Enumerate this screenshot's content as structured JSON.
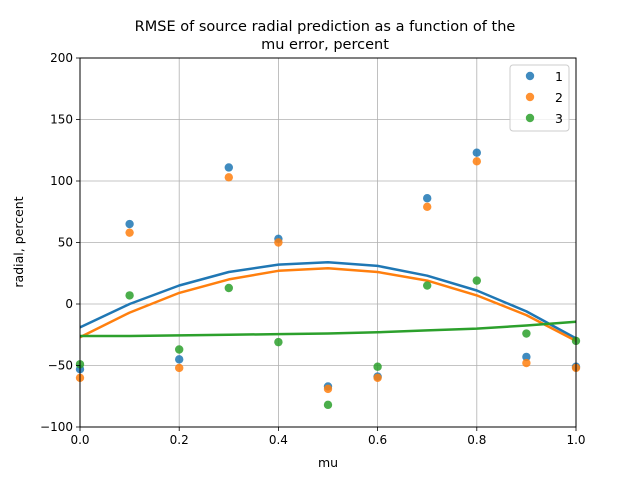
{
  "chart_data": {
    "type": "scatter",
    "title_line1": "RMSE of source radial prediction as a function of the",
    "title_line2": "mu error, percent",
    "xlabel": "mu",
    "ylabel": "radial, percent",
    "xlim": [
      0.0,
      1.0
    ],
    "ylim": [
      -100,
      200
    ],
    "xticks": [
      "0.0",
      "0.2",
      "0.4",
      "0.6",
      "0.8",
      "1.0"
    ],
    "yticks": [
      "−100",
      "−50",
      "0",
      "50",
      "100",
      "150",
      "200"
    ],
    "grid": true,
    "legend_position": "top-right",
    "x": [
      0.0,
      0.1,
      0.2,
      0.3,
      0.4,
      0.5,
      0.6,
      0.7,
      0.8,
      0.9,
      1.0
    ],
    "series": [
      {
        "name": "1",
        "color": "#1f77b4",
        "values": [
          -53,
          65,
          -45,
          111,
          53,
          -67,
          -59,
          86,
          123,
          -43,
          -51
        ],
        "fit_curve": {
          "x": [
            0.0,
            0.1,
            0.2,
            0.3,
            0.4,
            0.5,
            0.6,
            0.7,
            0.8,
            0.9,
            1.0
          ],
          "y": [
            -19,
            0,
            15,
            26,
            32,
            34,
            31,
            23,
            11,
            -6,
            -28
          ]
        }
      },
      {
        "name": "2",
        "color": "#ff7f0e",
        "values": [
          -60,
          58,
          -52,
          103,
          50,
          -69,
          -60,
          79,
          116,
          -48,
          -52
        ],
        "fit_curve": {
          "x": [
            0.0,
            0.1,
            0.2,
            0.3,
            0.4,
            0.5,
            0.6,
            0.7,
            0.8,
            0.9,
            1.0
          ],
          "y": [
            -27,
            -7,
            9,
            20,
            27,
            29,
            26,
            19,
            7,
            -9,
            -30
          ]
        }
      },
      {
        "name": "3",
        "color": "#2ca02c",
        "values": [
          -49,
          7,
          -37,
          13,
          -31,
          -82,
          -51,
          15,
          19,
          -24,
          -30
        ],
        "fit_curve": {
          "x": [
            0.0,
            0.1,
            0.2,
            0.3,
            0.4,
            0.5,
            0.6,
            0.7,
            0.8,
            0.9,
            1.0
          ],
          "y": [
            -26,
            -26,
            -25.5,
            -25,
            -24.5,
            -24,
            -23,
            -21.5,
            -20,
            -17.5,
            -14.5
          ]
        }
      }
    ]
  }
}
